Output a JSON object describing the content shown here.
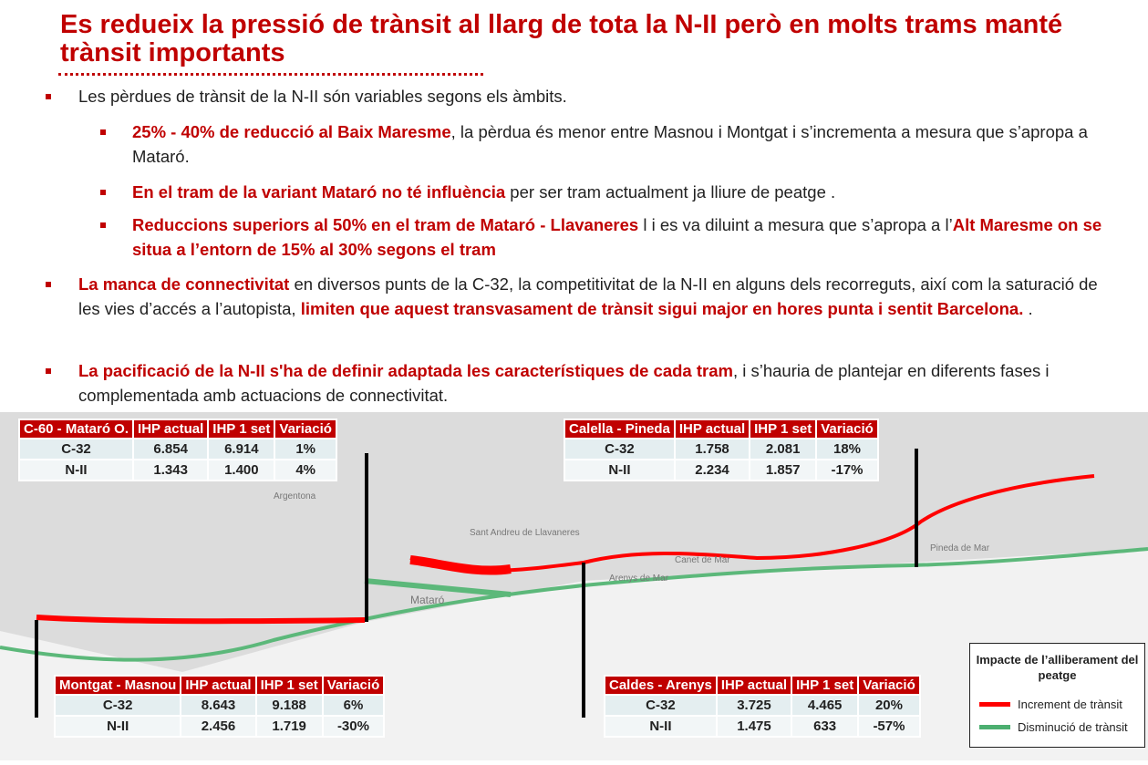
{
  "title": "Es redueix la pressió de trànsit al llarg de tota la N-II però en molts trams manté trànsit importants",
  "bullets": {
    "b1": "Les pèrdues de trànsit de la N-II són variables segons els àmbits.",
    "b1a_red": "25% - 40% de reducció al Baix Maresme",
    "b1a_rest": ", la pèrdua és menor entre Masnou i Montgat i s’incrementa a mesura que s’apropa a Mataró.",
    "b1b_red": "En el tram de la variant Mataró no té influència",
    "b1b_rest": " per ser tram actualment ja lliure de peatge .",
    "b1c_red": "Reduccions superiors al 50% en el tram de Mataró - Llavaneres",
    "b1c_mid": " l i es va diluint a mesura que s’apropa a l’",
    "b1c_red2": "Alt Maresme on se situa a l’entorn de 15% al 30% segons el tram",
    "b2_red": "La manca de connectivitat",
    "b2_mid": " en diversos punts de la C-32, la competitivitat de la N-II en alguns dels recorreguts, així com la saturació de les vies d’accés a l’autopista, ",
    "b2_red2": "limiten que aquest transvasament de trànsit sigui major en hores punta i sentit Barcelona.",
    "b2_end": " .",
    "b3_red": "La pacificació de la N-II  s'ha de definir adaptada les característiques de cada tram",
    "b3_rest": ", i s’hauria de plantejar en diferents fases i complementada amb actuacions de connectivitat."
  },
  "tables": [
    {
      "headers": [
        "C-60 - Mataró O.",
        "IHP actual",
        "IHP 1 set",
        "Variació"
      ],
      "rows": [
        [
          "C-32",
          "6.854",
          "6.914",
          "1%"
        ],
        [
          "N-II",
          "1.343",
          "1.400",
          "4%"
        ]
      ]
    },
    {
      "headers": [
        "Calella - Pineda",
        "IHP actual",
        "IHP 1 set",
        "Variació"
      ],
      "rows": [
        [
          "C-32",
          "1.758",
          "2.081",
          "18%"
        ],
        [
          "N-II",
          "2.234",
          "1.857",
          "-17%"
        ]
      ]
    },
    {
      "headers": [
        "Montgat - Masnou",
        "IHP actual",
        "IHP 1 set",
        "Variació"
      ],
      "rows": [
        [
          "C-32",
          "8.643",
          "9.188",
          "6%"
        ],
        [
          "N-II",
          "2.456",
          "1.719",
          "-30%"
        ]
      ]
    },
    {
      "headers": [
        "Caldes - Arenys",
        "IHP actual",
        "IHP 1 set",
        "Variació"
      ],
      "rows": [
        [
          "C-32",
          "3.725",
          "4.465",
          "20%"
        ],
        [
          "N-II",
          "1.475",
          "633",
          "-57%"
        ]
      ]
    }
  ],
  "map_labels": {
    "mataro": "Mataró",
    "arenys": "Arenys de Mar",
    "canet": "Canet de Mar",
    "pineda": "Pineda de Mar",
    "argentona": "Argentona",
    "llavaneres": "Sant Andreu de Llavaneres"
  },
  "legend": {
    "title": "Impacte de l’alliberament del peatge",
    "increase": "Increment de trànsit",
    "decrease": "Disminució de trànsit",
    "increase_color": "#ff0000",
    "decrease_color": "#4caf70"
  }
}
